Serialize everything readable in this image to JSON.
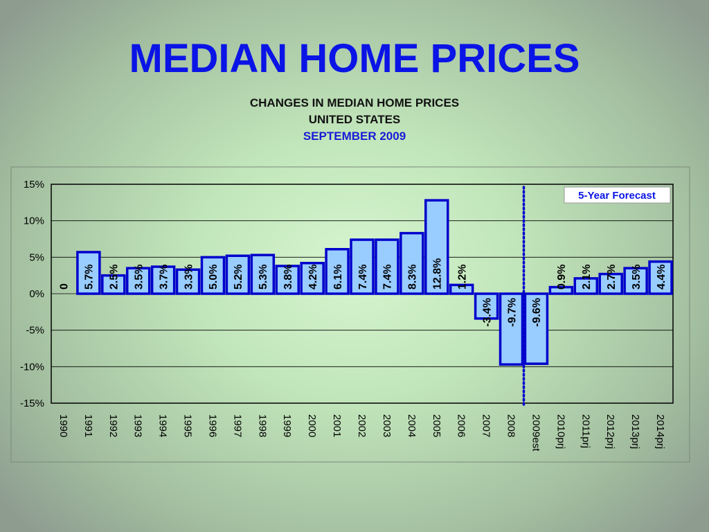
{
  "slide": {
    "title": "MEDIAN HOME PRICES"
  },
  "chart_data": {
    "type": "bar",
    "title": "CHANGES IN MEDIAN HOME PRICES",
    "subtitle_line1": "UNITED STATES",
    "subtitle_line2": "SEPTEMBER 2009",
    "xlabel": "",
    "ylabel": "",
    "ylim": [
      -15,
      15
    ],
    "yticks": [
      "15%",
      "10%",
      "5%",
      "0%",
      "-5%",
      "-10%",
      "-15%"
    ],
    "yticks_values": [
      15,
      10,
      5,
      0,
      -5,
      -10,
      -15
    ],
    "grid": true,
    "categories": [
      "1990",
      "1991",
      "1992",
      "1993",
      "1994",
      "1995",
      "1996",
      "1997",
      "1998",
      "1999",
      "2000",
      "2001",
      "2002",
      "2003",
      "2004",
      "2005",
      "2006",
      "2007",
      "2008",
      "2009est",
      "2010prj",
      "2011prj",
      "2012prj",
      "2013prj",
      "2014prj"
    ],
    "values": [
      0,
      5.7,
      2.5,
      3.5,
      3.7,
      3.3,
      5.0,
      5.2,
      5.3,
      3.8,
      4.2,
      6.1,
      7.4,
      7.4,
      8.3,
      12.8,
      1.2,
      -3.4,
      -9.7,
      -9.6,
      0.9,
      2.1,
      2.7,
      3.5,
      4.4
    ],
    "data_labels": [
      "0",
      "5.7%",
      "2.5%",
      "3.5%",
      "3.7%",
      "3.3%",
      "5.0%",
      "5.2%",
      "5.3%",
      "3.8%",
      "4.2%",
      "6.1%",
      "7.4%",
      "7.4%",
      "8.3%",
      "12.8%",
      "1.2%",
      "-3.4%",
      "-9.7%",
      "-9.6%",
      "0.9%",
      "2.1%",
      "2.7%",
      "3.5%",
      "4.4%"
    ],
    "annotation": "5-Year Forecast",
    "forecast_divider_after": "2008",
    "colors": {
      "bar_fill": "#99ccff",
      "bar_stroke": "#0000cc",
      "divider": "#0000cc",
      "title_blue": "#0a14e6"
    }
  }
}
